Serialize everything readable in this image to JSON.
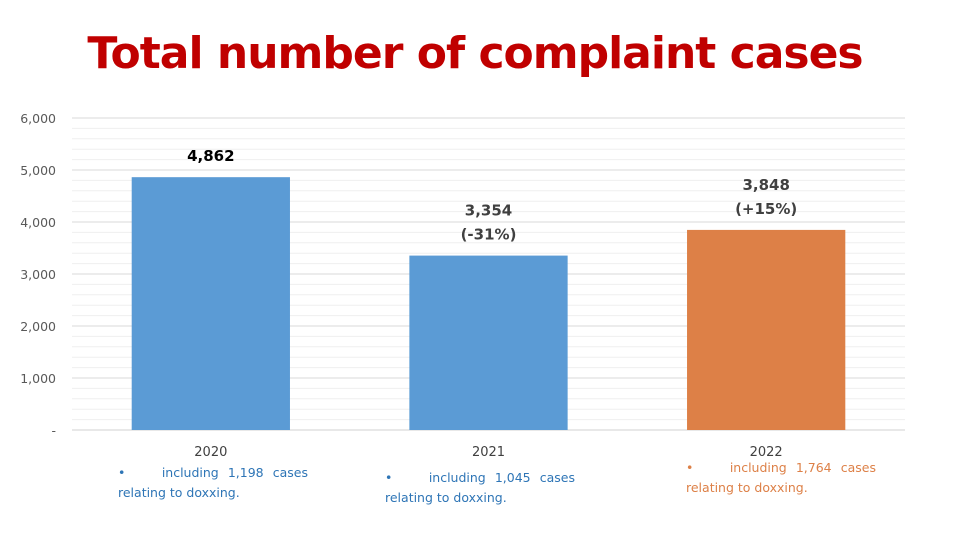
{
  "chart_data": {
    "type": "bar",
    "title": "Total number of complaint cases",
    "categories": [
      "2020",
      "2021",
      "2022"
    ],
    "values": [
      4862,
      3354,
      3848
    ],
    "data_labels": [
      [
        "4,862"
      ],
      [
        "3,354",
        "(-31%)"
      ],
      [
        "3,848",
        "(+15%)"
      ]
    ],
    "bar_colors": [
      "#5b9bd5",
      "#5b9bd5",
      "#dd8047"
    ],
    "ylim": [
      0,
      6000
    ],
    "yticks": [
      0,
      1000,
      2000,
      3000,
      4000,
      5000,
      6000
    ],
    "ytick_labels": [
      "-",
      "1,000",
      "2,000",
      "3,000",
      "4,000",
      "5,000",
      "6,000"
    ],
    "grid": true,
    "xlabel": "",
    "ylabel": ""
  },
  "notes": [
    {
      "bullet": "•",
      "text": "including 1,198 cases relating to doxxing.",
      "color": "#2e75b6"
    },
    {
      "bullet": "•",
      "text": "including 1,045 cases relating to doxxing.",
      "color": "#2e75b6"
    },
    {
      "bullet": "•",
      "text": "including 1,764 cases relating to doxxing.",
      "color": "#dd8047"
    }
  ],
  "colors": {
    "title": "#c00000"
  }
}
